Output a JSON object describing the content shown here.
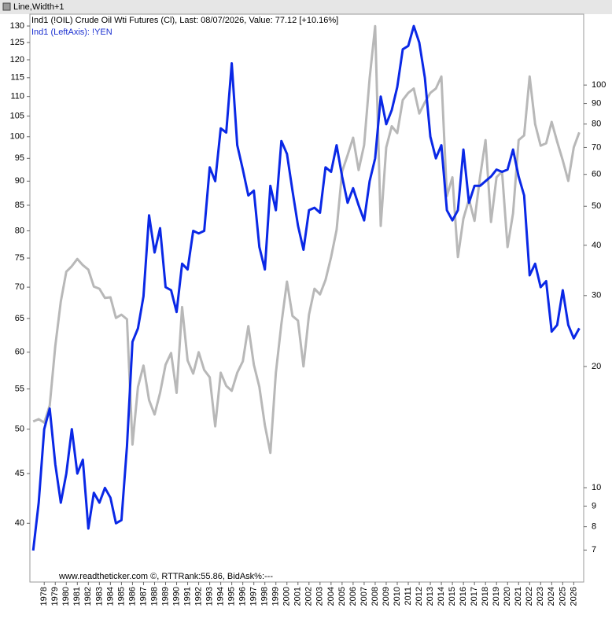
{
  "chart_data": {
    "type": "line",
    "title": "Line,Width+1",
    "annotation": "www.readtheticker.com ©, RTTRank:55.86, BidAsk%:---",
    "x": [
      1977,
      1977.5,
      1978,
      1978.5,
      1979,
      1979.5,
      1980,
      1980.5,
      1981,
      1981.5,
      1982,
      1982.5,
      1983,
      1983.5,
      1984,
      1984.5,
      1985,
      1985.5,
      1986,
      1986.5,
      1987,
      1987.5,
      1988,
      1988.5,
      1989,
      1989.5,
      1990,
      1990.5,
      1991,
      1991.5,
      1992,
      1992.5,
      1993,
      1993.5,
      1994,
      1994.5,
      1995,
      1995.5,
      1996,
      1996.5,
      1997,
      1997.5,
      1998,
      1998.5,
      1999,
      1999.5,
      2000,
      2000.5,
      2001,
      2001.5,
      2002,
      2002.5,
      2003,
      2003.5,
      2004,
      2004.5,
      2005,
      2005.5,
      2006,
      2006.5,
      2007,
      2007.5,
      2008,
      2008.5,
      2009,
      2009.5,
      2010,
      2010.5,
      2011,
      2011.5,
      2012,
      2012.5,
      2013,
      2013.5,
      2014,
      2014.5,
      2015,
      2015.5,
      2016,
      2016.5,
      2017,
      2017.5,
      2018,
      2018.5,
      2019,
      2019.5,
      2020,
      2020.5,
      2021,
      2021.5,
      2022,
      2022.5,
      2023,
      2023.5,
      2024,
      2024.5,
      2025,
      2025.5,
      2026,
      2026.5
    ],
    "series": [
      {
        "name": "Ind1 (!OIL) Crude Oil Wti Futures (Cl), Last: 08/07/2026,  Value: 77.12 [+10.16%]",
        "color": "#b8b8b8",
        "axis": "y2",
        "values": [
          14.6,
          14.8,
          14.5,
          16.0,
          22.5,
          29.0,
          34.4,
          35.5,
          37,
          35.7,
          34.8,
          31.6,
          31.2,
          29.6,
          29.7,
          26.4,
          26.9,
          26.2,
          12.8,
          17.8,
          20.1,
          16.5,
          15.2,
          17.2,
          20.2,
          21.6,
          17.2,
          28.1,
          20.7,
          19.2,
          21.7,
          19.6,
          18.8,
          14.2,
          19.3,
          17.9,
          17.4,
          19.3,
          20.6,
          25.2,
          20.2,
          17.8,
          14.3,
          12.2,
          19.3,
          25.5,
          32.5,
          26.7,
          26.0,
          20.0,
          26.9,
          31.2,
          30.2,
          32.8,
          37.4,
          43.7,
          61,
          67,
          74,
          61.5,
          71,
          104,
          140,
          44.7,
          70,
          79,
          76,
          91.8,
          95.6,
          98,
          85,
          90.6,
          95.6,
          98,
          105,
          53,
          59,
          37.4,
          46.6,
          52,
          46,
          59,
          73,
          45.7,
          59,
          61,
          39.6,
          48,
          73,
          75,
          105,
          80,
          70.7,
          71.7,
          81,
          72.3,
          65,
          57.8,
          70,
          76.3
        ]
      },
      {
        "name": "Ind1 (LeftAxis): !YEN",
        "color": "#0a28e6",
        "axis": "y",
        "values": [
          37.5,
          42,
          50,
          52.5,
          46,
          42,
          45,
          50,
          45,
          46.5,
          39.5,
          43,
          42,
          43.5,
          42.5,
          40,
          40.3,
          48,
          61.5,
          63.5,
          68.5,
          83,
          76,
          80.5,
          70,
          69.5,
          66,
          74,
          73,
          80,
          79.5,
          80,
          93,
          90,
          102,
          101,
          119,
          98,
          92.5,
          87,
          88,
          77,
          73,
          89,
          84,
          99,
          96,
          88,
          81,
          76.5,
          84,
          84.5,
          83.5,
          93,
          92,
          98,
          91,
          85.5,
          88.5,
          85,
          82,
          90,
          95,
          110,
          103,
          106.5,
          112.5,
          123,
          124,
          130,
          125,
          115,
          100,
          95,
          98,
          84,
          82,
          84,
          97,
          85.5,
          89,
          89,
          90,
          91,
          92.5,
          92,
          92.5,
          97,
          91,
          87,
          72,
          74,
          70,
          71,
          63,
          64,
          69.5,
          64,
          62,
          63.5
        ]
      }
    ],
    "xlim": [
      1976.7,
      2026.9
    ],
    "xticks": [
      1978,
      1979,
      1980,
      1981,
      1982,
      1983,
      1984,
      1985,
      1986,
      1987,
      1988,
      1989,
      1990,
      1991,
      1992,
      1993,
      1994,
      1995,
      1996,
      1997,
      1998,
      1999,
      2000,
      2001,
      2002,
      2003,
      2004,
      2005,
      2006,
      2007,
      2008,
      2009,
      2010,
      2011,
      2012,
      2013,
      2014,
      2015,
      2016,
      2017,
      2018,
      2019,
      2020,
      2021,
      2022,
      2023,
      2024,
      2025,
      2026
    ],
    "ylim": [
      34.8,
      133.7
    ],
    "yticks": [
      40,
      45,
      50,
      55,
      60,
      65,
      70,
      75,
      80,
      85,
      90,
      95,
      100,
      105,
      110,
      115,
      120,
      125,
      130
    ],
    "ylog": true,
    "y2lim": [
      5.83,
      150
    ],
    "y2ticks": [
      7,
      8,
      9,
      10,
      20,
      30,
      40,
      50,
      60,
      70,
      80,
      90,
      100
    ],
    "y2log": true
  }
}
